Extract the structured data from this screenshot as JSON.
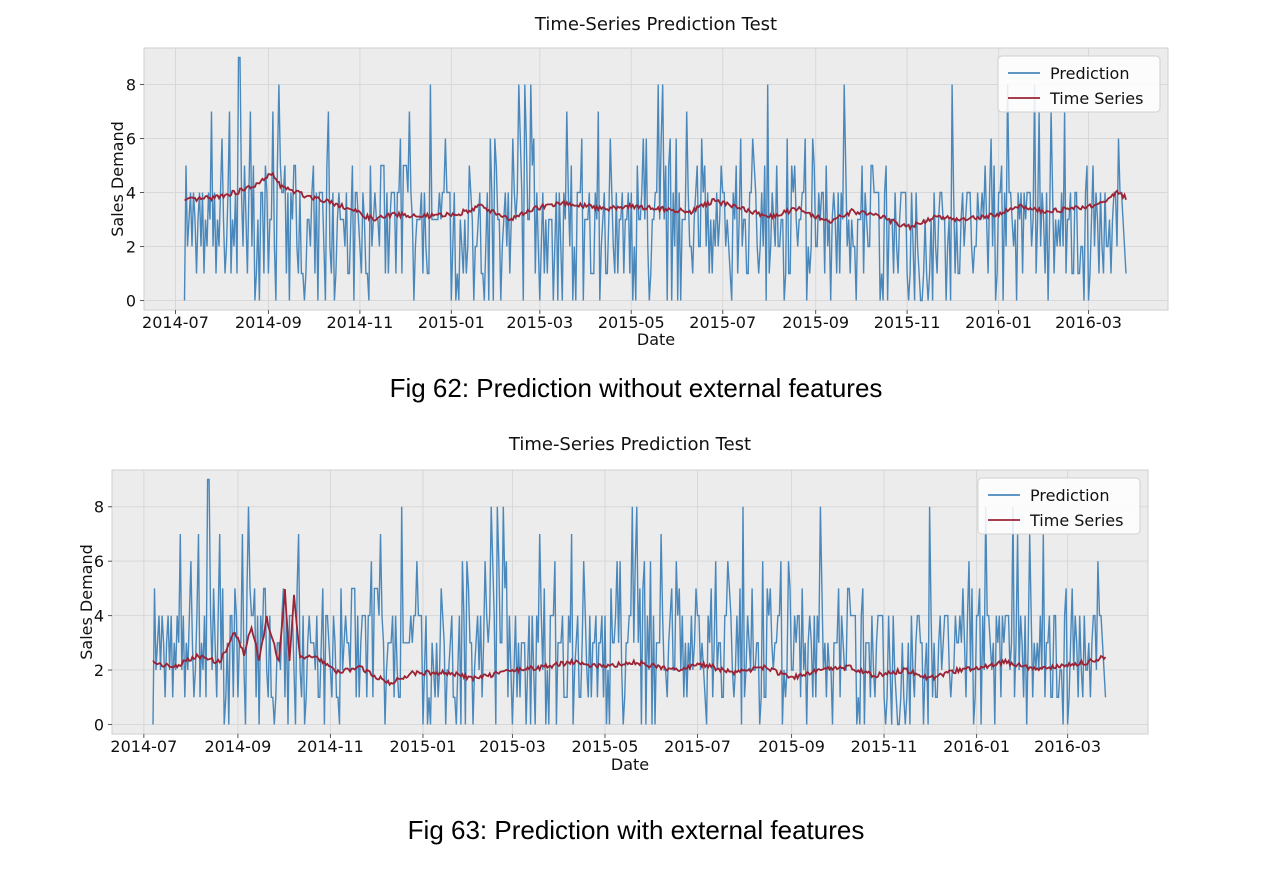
{
  "chart_data": [
    {
      "type": "line",
      "title": "Time-Series Prediction Test",
      "xlabel": "Date",
      "ylabel": "Sales Demand",
      "x_start": "2014-07-07",
      "x_end": "2016-03-26",
      "xlim": [
        "2014-06-10",
        "2016-04-23"
      ],
      "ylim": [
        -0.35,
        9.35
      ],
      "x_ticks": [
        "2014-07",
        "2014-09",
        "2014-11",
        "2015-01",
        "2015-03",
        "2015-05",
        "2015-07",
        "2015-09",
        "2015-11",
        "2016-01",
        "2016-03"
      ],
      "y_ticks": [
        0,
        2,
        4,
        6,
        8
      ],
      "grid": true,
      "legend_position": "top-right",
      "series": [
        {
          "name": "Prediction",
          "color": "#4a88bb",
          "kind": "daily-noisy",
          "values": [
            0,
            5,
            2,
            3,
            4,
            2,
            4,
            3,
            1,
            3,
            4,
            2,
            4,
            1,
            3,
            2,
            4,
            3,
            7,
            2,
            4,
            1,
            3,
            2,
            4,
            6,
            3,
            1,
            2,
            4,
            7,
            1,
            3,
            2,
            4,
            1,
            9,
            9,
            4,
            2,
            5,
            3,
            1,
            4,
            7,
            2,
            5,
            0,
            1,
            3,
            0
          ]
        },
        {
          "name": "Time Series",
          "color": "#9b2335",
          "kind": "smooth",
          "points": [
            [
              "2014-07-07",
              3.7
            ],
            [
              "2014-07-25",
              3.8
            ],
            [
              "2014-08-10",
              4.0
            ],
            [
              "2014-08-25",
              4.3
            ],
            [
              "2014-09-03",
              4.7
            ],
            [
              "2014-09-10",
              4.2
            ],
            [
              "2014-09-25",
              3.9
            ],
            [
              "2014-10-10",
              3.7
            ],
            [
              "2014-10-25",
              3.4
            ],
            [
              "2014-11-10",
              3.0
            ],
            [
              "2014-11-25",
              3.2
            ],
            [
              "2014-12-10",
              3.1
            ],
            [
              "2015-01-05",
              3.2
            ],
            [
              "2015-01-20",
              3.5
            ],
            [
              "2015-02-10",
              3.0
            ],
            [
              "2015-02-25",
              3.4
            ],
            [
              "2015-03-15",
              3.6
            ],
            [
              "2015-04-01",
              3.5
            ],
            [
              "2015-04-15",
              3.4
            ],
            [
              "2015-05-01",
              3.5
            ],
            [
              "2015-05-20",
              3.4
            ],
            [
              "2015-06-10",
              3.3
            ],
            [
              "2015-06-25",
              3.7
            ],
            [
              "2015-07-15",
              3.4
            ],
            [
              "2015-08-01",
              3.1
            ],
            [
              "2015-08-20",
              3.4
            ],
            [
              "2015-09-10",
              2.9
            ],
            [
              "2015-09-25",
              3.3
            ],
            [
              "2015-10-15",
              3.1
            ],
            [
              "2015-11-01",
              2.7
            ],
            [
              "2015-11-20",
              3.1
            ],
            [
              "2015-12-10",
              3.0
            ],
            [
              "2016-01-01",
              3.2
            ],
            [
              "2016-01-15",
              3.5
            ],
            [
              "2016-02-01",
              3.3
            ],
            [
              "2016-02-20",
              3.4
            ],
            [
              "2016-03-10",
              3.6
            ],
            [
              "2016-03-20",
              4.0
            ],
            [
              "2016-03-26",
              3.8
            ]
          ]
        }
      ]
    },
    {
      "type": "line",
      "title": "Time-Series Prediction Test",
      "xlabel": "Date",
      "ylabel": "Sales Demand",
      "x_start": "2014-07-07",
      "x_end": "2016-03-26",
      "xlim": [
        "2014-06-10",
        "2016-04-23"
      ],
      "ylim": [
        -0.35,
        9.35
      ],
      "x_ticks": [
        "2014-07",
        "2014-09",
        "2014-11",
        "2015-01",
        "2015-03",
        "2015-05",
        "2015-07",
        "2015-09",
        "2015-11",
        "2016-01",
        "2016-03"
      ],
      "y_ticks": [
        0,
        2,
        4,
        6,
        8
      ],
      "grid": true,
      "legend_position": "top-right",
      "series": [
        {
          "name": "Prediction",
          "color": "#4a88bb",
          "kind": "daily-noisy",
          "values": [
            0,
            5,
            2,
            3,
            4,
            2,
            4,
            3,
            1,
            3,
            4,
            2,
            4,
            1,
            3,
            2,
            4,
            3,
            7,
            2,
            4,
            1,
            3,
            2,
            4,
            6,
            3,
            1,
            2,
            4,
            7,
            1,
            3,
            2,
            4,
            1,
            9,
            9,
            4,
            2,
            5,
            3,
            1,
            4,
            7,
            2,
            5,
            0,
            1,
            3,
            0
          ]
        },
        {
          "name": "Time Series",
          "color": "#9b2335",
          "kind": "smooth",
          "points": [
            [
              "2014-07-07",
              2.3
            ],
            [
              "2014-07-20",
              2.1
            ],
            [
              "2014-08-05",
              2.5
            ],
            [
              "2014-08-20",
              2.3
            ],
            [
              "2014-08-30",
              3.4
            ],
            [
              "2014-09-05",
              2.6
            ],
            [
              "2014-09-10",
              3.6
            ],
            [
              "2014-09-15",
              2.4
            ],
            [
              "2014-09-20",
              3.9
            ],
            [
              "2014-09-28",
              2.3
            ],
            [
              "2014-10-02",
              4.9
            ],
            [
              "2014-10-05",
              2.4
            ],
            [
              "2014-10-08",
              4.7
            ],
            [
              "2014-10-12",
              2.5
            ],
            [
              "2014-10-25",
              2.4
            ],
            [
              "2014-11-05",
              1.9
            ],
            [
              "2014-11-20",
              2.1
            ],
            [
              "2014-12-10",
              1.5
            ],
            [
              "2014-12-25",
              1.9
            ],
            [
              "2015-01-15",
              1.9
            ],
            [
              "2015-02-05",
              1.7
            ],
            [
              "2015-03-01",
              2.0
            ],
            [
              "2015-03-20",
              2.1
            ],
            [
              "2015-04-10",
              2.3
            ],
            [
              "2015-05-01",
              2.1
            ],
            [
              "2015-05-20",
              2.3
            ],
            [
              "2015-06-15",
              2.0
            ],
            [
              "2015-07-05",
              2.2
            ],
            [
              "2015-07-25",
              1.9
            ],
            [
              "2015-08-15",
              2.1
            ],
            [
              "2015-09-01",
              1.7
            ],
            [
              "2015-09-20",
              2.0
            ],
            [
              "2015-10-10",
              2.1
            ],
            [
              "2015-10-25",
              1.8
            ],
            [
              "2015-11-15",
              2.0
            ],
            [
              "2015-12-01",
              1.7
            ],
            [
              "2015-12-20",
              2.0
            ],
            [
              "2016-01-05",
              2.1
            ],
            [
              "2016-01-20",
              2.3
            ],
            [
              "2016-02-10",
              2.0
            ],
            [
              "2016-03-01",
              2.2
            ],
            [
              "2016-03-15",
              2.3
            ],
            [
              "2016-03-26",
              2.5
            ]
          ]
        }
      ]
    }
  ],
  "captions": {
    "fig1": "Fig 62: Prediction without external features",
    "fig2": "Fig 63: Prediction with external features"
  }
}
